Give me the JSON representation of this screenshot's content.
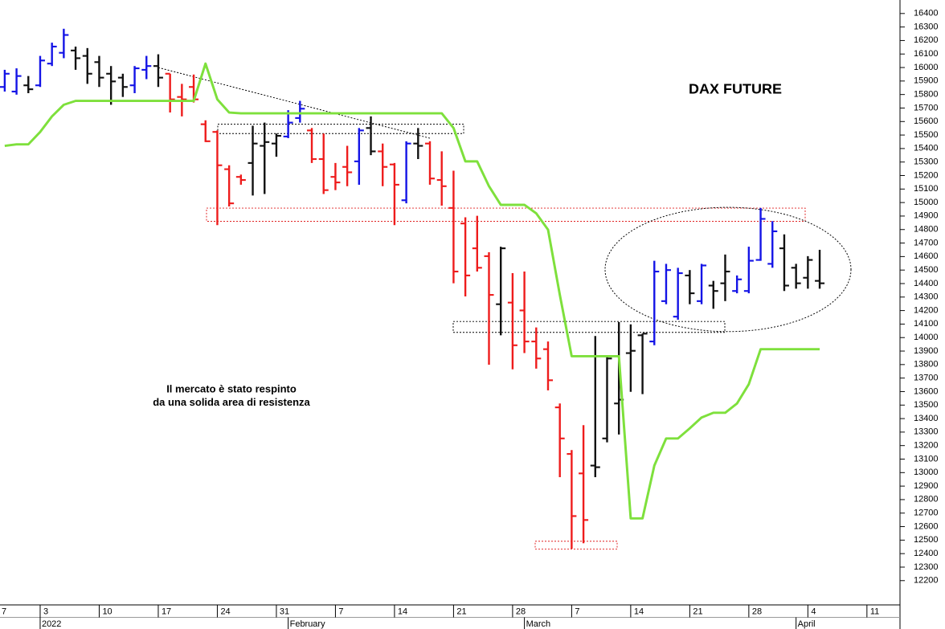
{
  "chart_data": {
    "type": "ohlc",
    "title": "DAX FUTURE",
    "annotations": [
      "Il mercato è stato respinto",
      "da una solida area di resistenza"
    ],
    "categories": [
      null,
      null,
      null,
      null,
      null,
      null,
      null,
      null,
      null,
      null,
      null,
      null,
      null,
      null,
      null,
      null,
      null,
      null,
      null,
      null,
      null,
      null,
      null,
      null,
      null,
      null,
      null,
      null,
      null,
      null,
      null,
      null,
      null,
      null,
      null,
      null,
      null,
      null,
      null,
      null,
      null,
      null,
      null,
      null,
      null,
      null,
      null,
      null,
      null,
      null,
      null,
      null,
      null,
      null,
      null,
      null,
      null,
      null,
      null,
      null,
      null,
      null,
      null,
      null,
      null,
      null,
      null,
      null,
      null,
      null
    ],
    "series": [
      {
        "type": "ohlc",
        "open": [
          15856,
          15822,
          15868,
          15868,
          16029,
          16109,
          16126,
          16086,
          16040,
          15954,
          15925,
          15868,
          15983,
          16011,
          15954,
          15782,
          15856,
          15580,
          15523,
          15247,
          15190,
          15293,
          15420,
          15437,
          15489,
          15626,
          15534,
          15322,
          15190,
          15264,
          15305,
          15552,
          15379,
          15282,
          15017,
          15437,
          15437,
          15167,
          14960,
          14845,
          14661,
          14603,
          14247,
          14259,
          14201,
          13971,
          13914,
          13483,
          13138,
          12994,
          13052,
          13253,
          13512,
          13885,
          14017,
          13971,
          14270,
          14155,
          14460,
          14270,
          14385,
          14402,
          14345,
          14345,
          14575,
          14546,
          14661,
          14517,
          14443,
          14420
        ],
        "high": [
          15983,
          15994,
          15937,
          16086,
          16184,
          16287,
          16155,
          16144,
          16086,
          16011,
          15954,
          16011,
          16086,
          16098,
          15954,
          15879,
          15948,
          15609,
          15534,
          15276,
          15207,
          15569,
          15592,
          15511,
          15684,
          15753,
          15552,
          15511,
          15293,
          15420,
          15552,
          15638,
          15437,
          15293,
          15454,
          15552,
          15454,
          15379,
          15236,
          14891,
          14902,
          14632,
          14673,
          14477,
          14489,
          14075,
          13971,
          13512,
          13167,
          13351,
          14012,
          13856,
          14115,
          14098,
          14029,
          14569,
          14546,
          14517,
          14500,
          14546,
          14420,
          14615,
          14460,
          14673,
          14960,
          14862,
          14764,
          14546,
          14603,
          14650
        ],
        "low": [
          15822,
          15799,
          15810,
          15856,
          16011,
          16069,
          15983,
          15879,
          15856,
          15724,
          15782,
          15810,
          15914,
          15856,
          15667,
          15638,
          15741,
          15448,
          14833,
          14971,
          15132,
          15052,
          15063,
          15339,
          15477,
          15592,
          15293,
          15063,
          15092,
          15121,
          15132,
          15351,
          15121,
          14833,
          14994,
          15322,
          15132,
          14977,
          14402,
          14305,
          14489,
          13799,
          14017,
          13765,
          13885,
          13770,
          13609,
          12966,
          12437,
          12477,
          12966,
          13224,
          13282,
          13598,
          13581,
          13943,
          14247,
          14132,
          14247,
          14247,
          14213,
          14270,
          14328,
          14328,
          14569,
          14517,
          14345,
          14362,
          14362,
          14362
        ],
        "close": [
          15954,
          15937,
          15839,
          16052,
          16155,
          16241,
          16069,
          15954,
          15925,
          15897,
          15856,
          15994,
          16011,
          15925,
          15764,
          15764,
          15764,
          15454,
          15276,
          14994,
          15167,
          15437,
          15448,
          15494,
          15592,
          15695,
          15322,
          15092,
          15149,
          15224,
          15534,
          15379,
          15264,
          15132,
          15437,
          15420,
          15178,
          15121,
          14489,
          14460,
          14517,
          14316,
          14661,
          13943,
          13971,
          13845,
          13684,
          13253,
          12678,
          12649,
          13040,
          13845,
          13540,
          13902,
          14029,
          14489,
          14500,
          14477,
          14328,
          14534,
          14345,
          14489,
          14431,
          14569,
          14879,
          14787,
          14385,
          14402,
          14575,
          14402
        ],
        "colors": [
          "#1414e6",
          "#1414e6",
          "#111111",
          "#1414e6",
          "#1414e6",
          "#1414e6",
          "#111111",
          "#111111",
          "#111111",
          "#111111",
          "#111111",
          "#1414e6",
          "#1414e6",
          "#111111",
          "#ee1c1c",
          "#ee1c1c",
          "#ee1c1c",
          "#ee1c1c",
          "#ee1c1c",
          "#ee1c1c",
          "#ee1c1c",
          "#111111",
          "#111111",
          "#111111",
          "#1414e6",
          "#1414e6",
          "#ee1c1c",
          "#ee1c1c",
          "#ee1c1c",
          "#ee1c1c",
          "#1414e6",
          "#111111",
          "#ee1c1c",
          "#ee1c1c",
          "#1414e6",
          "#111111",
          "#ee1c1c",
          "#ee1c1c",
          "#ee1c1c",
          "#ee1c1c",
          "#ee1c1c",
          "#ee1c1c",
          "#111111",
          "#ee1c1c",
          "#ee1c1c",
          "#ee1c1c",
          "#ee1c1c",
          "#ee1c1c",
          "#ee1c1c",
          "#ee1c1c",
          "#111111",
          "#111111",
          "#111111",
          "#111111",
          "#111111",
          "#1414e6",
          "#1414e6",
          "#1414e6",
          "#111111",
          "#1414e6",
          "#111111",
          "#111111",
          "#1414e6",
          "#1414e6",
          "#1414e6",
          "#1414e6",
          "#111111",
          "#111111",
          "#111111",
          "#111111"
        ]
      },
      {
        "type": "line",
        "color": "#7ee03c",
        "values": [
          15420,
          15431,
          15431,
          15523,
          15638,
          15724,
          15753,
          15753,
          15753,
          15753,
          15753,
          15753,
          15753,
          15753,
          15753,
          15753,
          15753,
          16029,
          15764,
          15667,
          15661,
          15661,
          15661,
          15661,
          15661,
          15661,
          15661,
          15661,
          15661,
          15661,
          15661,
          15661,
          15661,
          15661,
          15661,
          15661,
          15661,
          15661,
          15552,
          15305,
          15305,
          15121,
          14983,
          14983,
          14983,
          14920,
          14799,
          14316,
          13862,
          13862,
          13862,
          13862,
          13862,
          12661,
          12661,
          13052,
          13253,
          13253,
          13328,
          13408,
          13443,
          13443,
          13512,
          13655,
          13914,
          13914,
          13914,
          13914,
          13914,
          13914
        ]
      }
    ],
    "ylim": [
      12020,
      16500
    ],
    "yticks": [
      12200,
      12300,
      12400,
      12500,
      12600,
      12700,
      12800,
      12900,
      13000,
      13100,
      13200,
      13300,
      13400,
      13500,
      13600,
      13700,
      13800,
      13900,
      14000,
      14100,
      14200,
      14300,
      14400,
      14500,
      14600,
      14700,
      14800,
      14900,
      15000,
      15100,
      15200,
      15300,
      15400,
      15500,
      15600,
      15700,
      15800,
      15900,
      16000,
      16100,
      16200,
      16300,
      16400
    ],
    "xlim": [
      -0.4,
      75.8
    ],
    "xticks": [
      {
        "value": -2,
        "label": "7"
      },
      {
        "value": 3,
        "label": "3"
      },
      {
        "value": 8,
        "label": "10"
      },
      {
        "value": 13,
        "label": "17"
      },
      {
        "value": 18,
        "label": "24"
      },
      {
        "value": 23,
        "label": "31"
      },
      {
        "value": 28,
        "label": "7"
      },
      {
        "value": 33,
        "label": "14"
      },
      {
        "value": 38,
        "label": "21"
      },
      {
        "value": 43,
        "label": "28"
      },
      {
        "value": 48,
        "label": "7"
      },
      {
        "value": 53,
        "label": "14"
      },
      {
        "value": 58,
        "label": "21"
      },
      {
        "value": 63,
        "label": "28"
      },
      {
        "value": 68,
        "label": "4"
      },
      {
        "value": 73,
        "label": "11"
      }
    ],
    "month_ticks": [
      {
        "value": 3,
        "label": "2022"
      },
      {
        "value": 24,
        "label": "February"
      },
      {
        "value": 44,
        "label": "March"
      },
      {
        "value": 67,
        "label": "April"
      }
    ]
  }
}
